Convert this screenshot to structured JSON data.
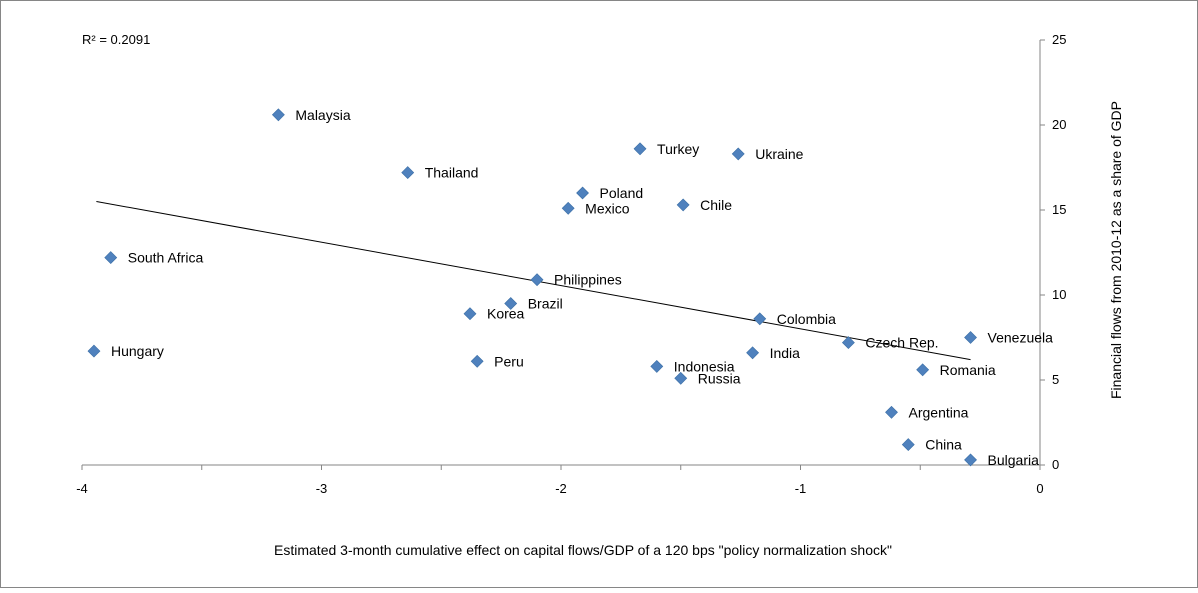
{
  "chart_data": {
    "type": "scatter",
    "xlabel": "Estimated 3-month cumulative effect on capital flows/GDP of a 120 bps \"policy normalization shock\"",
    "ylabel": "Financial flows from 2010-12 as a share of GDP",
    "annotation": "R² = 0.2091",
    "xlim": [
      -4,
      0
    ],
    "ylim": [
      0,
      25
    ],
    "x_ticks": [
      -4,
      -3,
      -2,
      -1,
      0
    ],
    "x_tick_labels": [
      "-4",
      "-3",
      "-2",
      "-1",
      "0"
    ],
    "y_ticks": [
      0,
      5,
      10,
      15,
      20,
      25
    ],
    "y_tick_labels": [
      "0",
      "5",
      "10",
      "15",
      "20",
      "25"
    ],
    "y_axis_side": "right",
    "grid": false,
    "marker": "diamond",
    "marker_color": "#4F81BD",
    "trendline": {
      "type": "linear",
      "x_start": -3.94,
      "y_start": 15.5,
      "x_end": -0.29,
      "y_end": 6.2,
      "color": "#000000"
    },
    "points": [
      {
        "label": "Malaysia",
        "x": -3.18,
        "y": 20.6
      },
      {
        "label": "Turkey",
        "x": -1.67,
        "y": 18.6
      },
      {
        "label": "Ukraine",
        "x": -1.26,
        "y": 18.3
      },
      {
        "label": "Thailand",
        "x": -2.64,
        "y": 17.2
      },
      {
        "label": "Poland",
        "x": -1.91,
        "y": 16.0
      },
      {
        "label": "Mexico",
        "x": -1.97,
        "y": 15.1
      },
      {
        "label": "Chile",
        "x": -1.49,
        "y": 15.3
      },
      {
        "label": "South Africa",
        "x": -3.88,
        "y": 12.2
      },
      {
        "label": "Philippines",
        "x": -2.1,
        "y": 10.9
      },
      {
        "label": "Brazil",
        "x": -2.21,
        "y": 9.5
      },
      {
        "label": "Korea",
        "x": -2.38,
        "y": 8.9
      },
      {
        "label": "Colombia",
        "x": -1.17,
        "y": 8.6
      },
      {
        "label": "Venezuela",
        "x": -0.29,
        "y": 7.5
      },
      {
        "label": "Czech Rep.",
        "x": -0.8,
        "y": 7.2
      },
      {
        "label": "Hungary",
        "x": -3.95,
        "y": 6.7
      },
      {
        "label": "India",
        "x": -1.2,
        "y": 6.6
      },
      {
        "label": "Peru",
        "x": -2.35,
        "y": 6.1
      },
      {
        "label": "Indonesia",
        "x": -1.6,
        "y": 5.8
      },
      {
        "label": "Romania",
        "x": -0.49,
        "y": 5.6
      },
      {
        "label": "Russia",
        "x": -1.5,
        "y": 5.1
      },
      {
        "label": "Argentina",
        "x": -0.62,
        "y": 3.1
      },
      {
        "label": "China",
        "x": -0.55,
        "y": 1.2
      },
      {
        "label": "Bulgaria",
        "x": -0.29,
        "y": 0.3
      }
    ]
  }
}
